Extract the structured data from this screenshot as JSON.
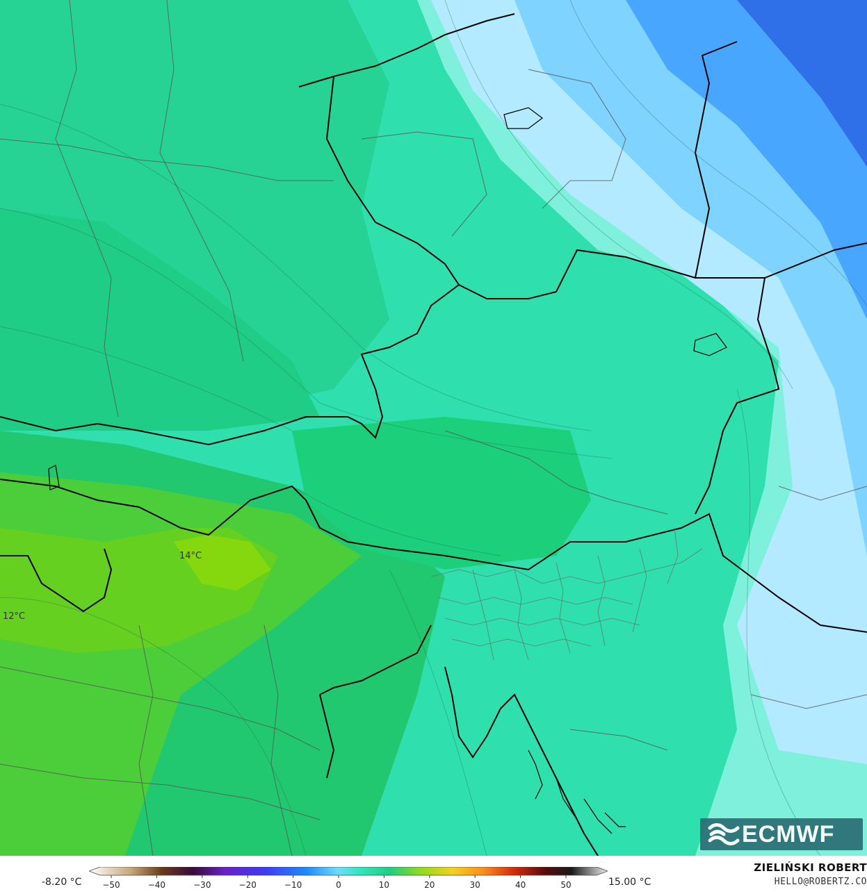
{
  "map": {
    "labels": [
      {
        "text": "14°C",
        "name": "isotherm-label-14"
      },
      {
        "text": "12°C",
        "name": "isotherm-label-12"
      }
    ]
  },
  "logo": {
    "text": "ECMWF",
    "icon": "ecmwf-logo-icon",
    "color": "#2a6e74"
  },
  "legend": {
    "min_label": "-8.20 °C",
    "max_label": "15.00 °C",
    "ticks": [
      "−50",
      "−40",
      "−30",
      "−20",
      "−10",
      "0",
      "10",
      "20",
      "30",
      "40",
      "50"
    ]
  },
  "credit": {
    "name": "ZIELIŃSKI ROBERT",
    "email": "HELLO@ROBERTZ.CO"
  }
}
